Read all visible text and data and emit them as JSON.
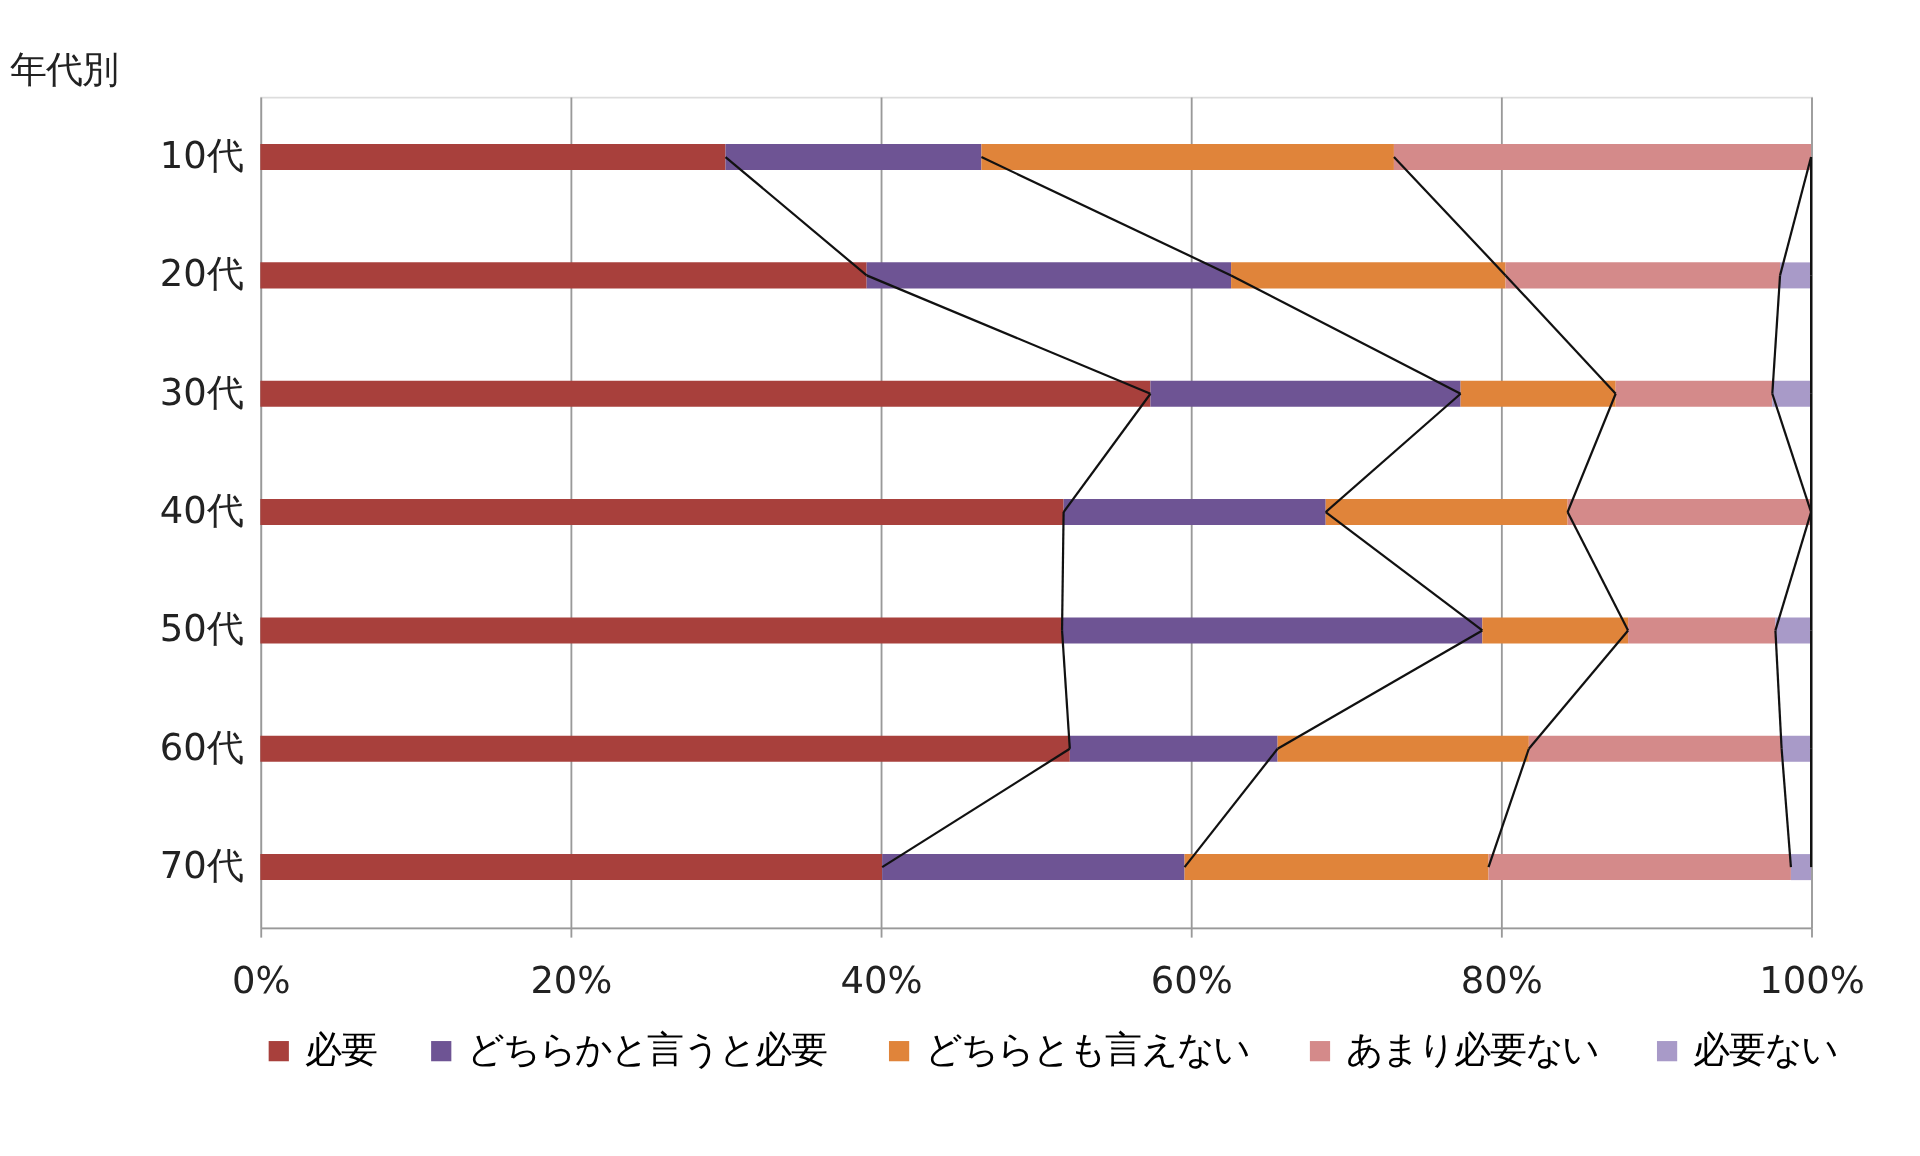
{
  "chart_data": {
    "type": "bar",
    "orientation": "horizontal",
    "stacked": true,
    "ylabel": "年代別",
    "categories": [
      "10代",
      "20代",
      "30代",
      "40代",
      "50代",
      "60代",
      "70代"
    ],
    "series": [
      {
        "name": "必要",
        "color": "#a8403c",
        "values": [
          30.0,
          39.1,
          57.4,
          51.8,
          51.7,
          52.2,
          40.1
        ]
      },
      {
        "name": "どちらかと言うと必要",
        "color": "#6e5494",
        "values": [
          16.5,
          23.5,
          20.0,
          16.9,
          27.1,
          13.4,
          19.5
        ]
      },
      {
        "name": "どちらとも言えない",
        "color": "#e0843a",
        "values": [
          26.6,
          17.7,
          10.0,
          15.6,
          9.4,
          16.2,
          19.6
        ]
      },
      {
        "name": "あまり必要ない",
        "color": "#d48a8a",
        "values": [
          26.9,
          17.7,
          10.1,
          15.7,
          9.5,
          16.3,
          19.5
        ]
      },
      {
        "name": "必要ない",
        "color": "#a89ac8",
        "values": [
          0,
          2.0,
          2.5,
          0,
          2.3,
          1.9,
          1.3
        ]
      }
    ],
    "xlim": [
      0,
      100
    ],
    "xticks": [
      {
        "value": 0,
        "label": "0%"
      },
      {
        "value": 20,
        "label": "20%"
      },
      {
        "value": 40,
        "label": "40%"
      },
      {
        "value": 60,
        "label": "60%"
      },
      {
        "value": 80,
        "label": "80%"
      },
      {
        "value": 100,
        "label": "100%"
      }
    ],
    "grid": "x",
    "legend": "bottom"
  }
}
